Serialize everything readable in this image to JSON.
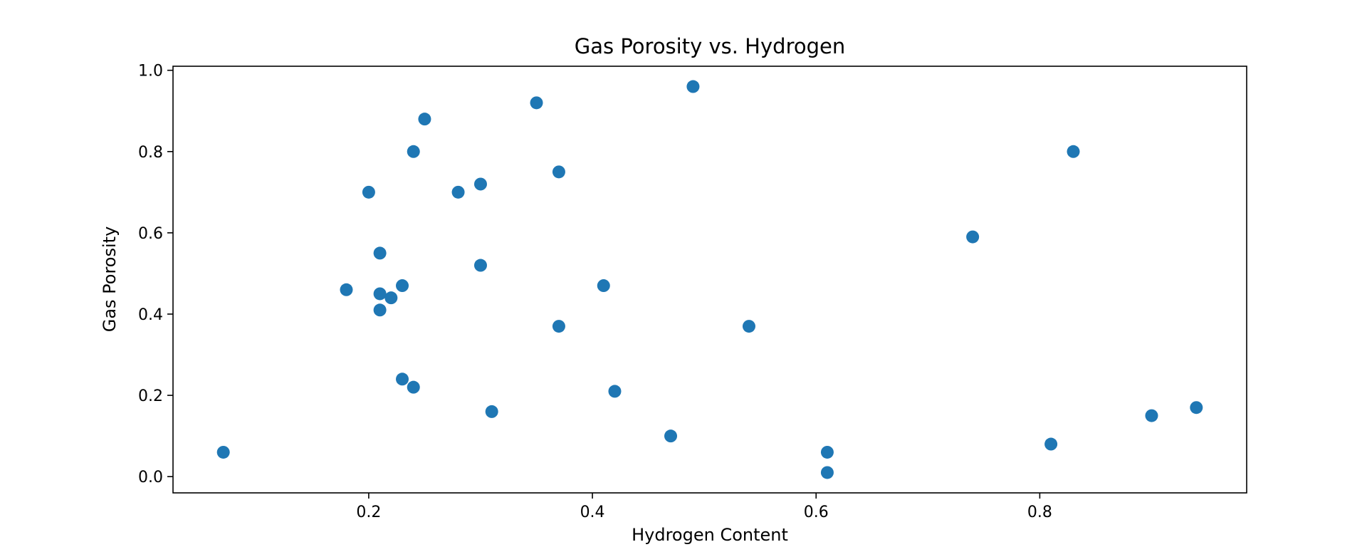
{
  "chart_data": {
    "type": "scatter",
    "title": "Gas Porosity vs. Hydrogen",
    "xlabel": "Hydrogen Content",
    "ylabel": "Gas Porosity",
    "xlim": [
      0.025,
      0.985
    ],
    "ylim": [
      -0.04,
      1.01
    ],
    "xticks": [
      0.2,
      0.4,
      0.6,
      0.8
    ],
    "xtick_labels": [
      "0.2",
      "0.4",
      "0.6",
      "0.8"
    ],
    "yticks": [
      0.0,
      0.2,
      0.4,
      0.6,
      0.8,
      1.0
    ],
    "ytick_labels": [
      "0.0",
      "0.2",
      "0.4",
      "0.6",
      "0.8",
      "1.0"
    ],
    "grid": false,
    "marker_color": "#1f77b4",
    "series": [
      {
        "x": [
          0.07,
          0.18,
          0.2,
          0.21,
          0.21,
          0.21,
          0.22,
          0.23,
          0.23,
          0.24,
          0.24,
          0.25,
          0.28,
          0.3,
          0.3,
          0.31,
          0.35,
          0.37,
          0.37,
          0.41,
          0.42,
          0.47,
          0.49,
          0.54,
          0.61,
          0.61,
          0.74,
          0.81,
          0.83,
          0.9,
          0.94
        ],
        "y": [
          0.06,
          0.46,
          0.7,
          0.55,
          0.45,
          0.41,
          0.44,
          0.47,
          0.24,
          0.8,
          0.22,
          0.88,
          0.7,
          0.72,
          0.52,
          0.16,
          0.92,
          0.75,
          0.37,
          0.47,
          0.21,
          0.1,
          0.96,
          0.37,
          0.06,
          0.01,
          0.59,
          0.08,
          0.8,
          0.15,
          0.17
        ]
      }
    ]
  }
}
